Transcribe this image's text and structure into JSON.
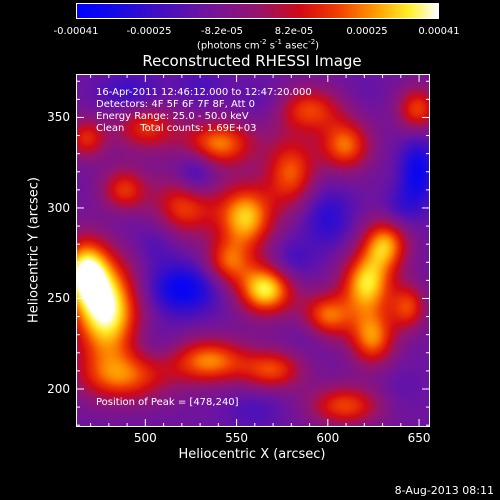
{
  "colorbar": {
    "ticks": [
      "-0.00041",
      "-0.00025",
      "-8.2e-05",
      "8.2e-05",
      "0.00025",
      "0.00041"
    ],
    "units_main": "(photons cm",
    "units_sup1": "-2",
    "units_mid1": " s",
    "units_sup2": "-1",
    "units_mid2": " asec",
    "units_sup3": "-2",
    "units_end": ")",
    "colormap": "blue-purple-red-yellow-white"
  },
  "info": {
    "line1": "16-Apr-2011 12:46:12.000 to 12:47:20.000",
    "line2": "Detectors: 4F 5F 6F 7F 8F, Att 0",
    "line3": "Energy Range: 25.0 - 50.0 keV",
    "line4": "Clean     Total counts: 1.69E+03",
    "peak": "Position of Peak = [478,240]"
  },
  "footer": {
    "date": "8-Aug-2013 08:11"
  },
  "chart_data": {
    "type": "heatmap",
    "title": "Reconstructed RHESSI Image",
    "xlabel": "Heliocentric X (arcsec)",
    "ylabel": "Heliocentric Y (arcsec)",
    "xlim": [
      462,
      656
    ],
    "ylim": [
      179,
      374
    ],
    "xticks": [
      500,
      550,
      600,
      650
    ],
    "yticks": [
      200,
      250,
      300,
      350
    ],
    "zlim": [
      -0.00041,
      0.00041
    ],
    "peak": {
      "x": 478,
      "y": 240
    },
    "blobs": [
      {
        "x": 478,
        "y": 243,
        "v": 0.00041,
        "sx": 13,
        "sy": 20
      },
      {
        "x": 466,
        "y": 265,
        "v": 0.0003,
        "sx": 9,
        "sy": 13
      },
      {
        "x": 488,
        "y": 310,
        "v": 0.00016,
        "sx": 9,
        "sy": 9
      },
      {
        "x": 467,
        "y": 339,
        "v": 0.00014,
        "sx": 8,
        "sy": 8
      },
      {
        "x": 488,
        "y": 206,
        "v": 0.00018,
        "sx": 18,
        "sy": 10
      },
      {
        "x": 500,
        "y": 345,
        "v": 0.00015,
        "sx": 12,
        "sy": 9
      },
      {
        "x": 522,
        "y": 302,
        "v": 0.0002,
        "sx": 12,
        "sy": 12
      },
      {
        "x": 540,
        "y": 336,
        "v": 0.00024,
        "sx": 14,
        "sy": 9
      },
      {
        "x": 555,
        "y": 295,
        "v": 0.00031,
        "sx": 11,
        "sy": 13
      },
      {
        "x": 545,
        "y": 270,
        "v": 0.00016,
        "sx": 9,
        "sy": 9
      },
      {
        "x": 566,
        "y": 255,
        "v": 0.00036,
        "sx": 11,
        "sy": 10
      },
      {
        "x": 535,
        "y": 215,
        "v": 0.00024,
        "sx": 15,
        "sy": 9
      },
      {
        "x": 570,
        "y": 210,
        "v": 0.00017,
        "sx": 12,
        "sy": 8
      },
      {
        "x": 580,
        "y": 320,
        "v": 0.0002,
        "sx": 10,
        "sy": 14
      },
      {
        "x": 590,
        "y": 355,
        "v": 0.00017,
        "sx": 13,
        "sy": 9
      },
      {
        "x": 610,
        "y": 335,
        "v": 0.00022,
        "sx": 10,
        "sy": 10
      },
      {
        "x": 600,
        "y": 240,
        "v": 0.00022,
        "sx": 10,
        "sy": 9
      },
      {
        "x": 622,
        "y": 258,
        "v": 0.00032,
        "sx": 10,
        "sy": 12
      },
      {
        "x": 632,
        "y": 280,
        "v": 0.00026,
        "sx": 9,
        "sy": 10
      },
      {
        "x": 625,
        "y": 228,
        "v": 0.00024,
        "sx": 9,
        "sy": 11
      },
      {
        "x": 610,
        "y": 190,
        "v": 0.00018,
        "sx": 14,
        "sy": 8
      },
      {
        "x": 650,
        "y": 355,
        "v": 0.00018,
        "sx": 8,
        "sy": 9
      },
      {
        "x": 645,
        "y": 245,
        "v": 0.00016,
        "sx": 7,
        "sy": 9
      },
      {
        "x": 520,
        "y": 255,
        "v": -0.00038,
        "sx": 14,
        "sy": 10
      },
      {
        "x": 527,
        "y": 318,
        "v": -0.00032,
        "sx": 8,
        "sy": 10
      },
      {
        "x": 491,
        "y": 364,
        "v": -0.00025,
        "sx": 12,
        "sy": 8
      },
      {
        "x": 530,
        "y": 368,
        "v": -0.0002,
        "sx": 10,
        "sy": 7
      },
      {
        "x": 505,
        "y": 280,
        "v": -0.0002,
        "sx": 9,
        "sy": 9
      },
      {
        "x": 486,
        "y": 295,
        "v": -0.00016,
        "sx": 8,
        "sy": 8
      },
      {
        "x": 650,
        "y": 320,
        "v": -0.00036,
        "sx": 7,
        "sy": 14
      },
      {
        "x": 600,
        "y": 295,
        "v": -0.00028,
        "sx": 10,
        "sy": 12
      },
      {
        "x": 580,
        "y": 270,
        "v": -0.00024,
        "sx": 9,
        "sy": 9
      },
      {
        "x": 640,
        "y": 300,
        "v": -0.00022,
        "sx": 7,
        "sy": 8
      },
      {
        "x": 590,
        "y": 230,
        "v": -0.00018,
        "sx": 8,
        "sy": 8
      },
      {
        "x": 505,
        "y": 225,
        "v": -0.00018,
        "sx": 10,
        "sy": 8
      },
      {
        "x": 560,
        "y": 188,
        "v": -0.0002,
        "sx": 12,
        "sy": 8
      },
      {
        "x": 640,
        "y": 200,
        "v": -0.00016,
        "sx": 9,
        "sy": 9
      },
      {
        "x": 565,
        "y": 360,
        "v": -0.00018,
        "sx": 10,
        "sy": 8
      },
      {
        "x": 620,
        "y": 365,
        "v": -0.00015,
        "sx": 8,
        "sy": 7
      }
    ]
  }
}
